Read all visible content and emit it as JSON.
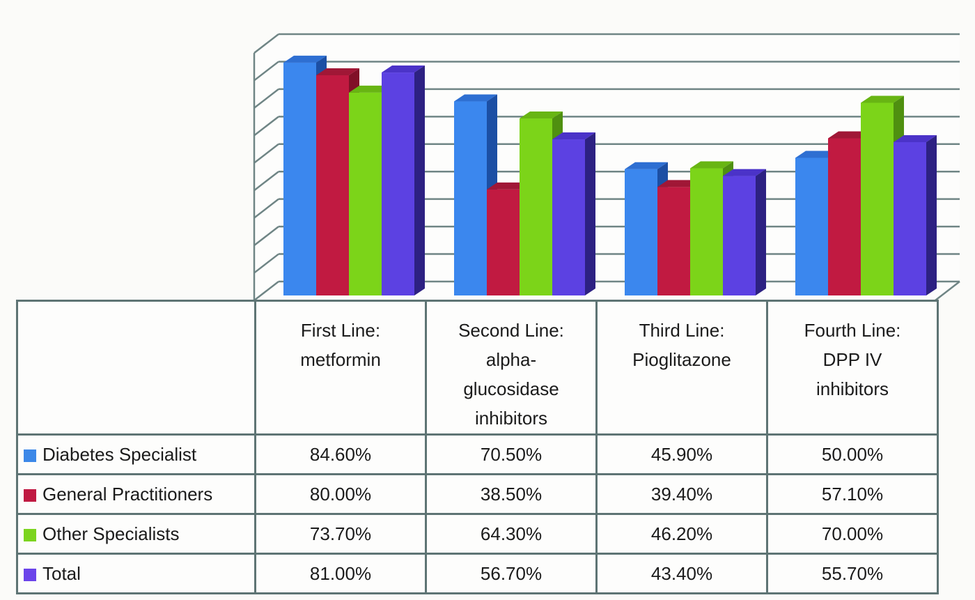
{
  "chart_data": {
    "type": "bar",
    "projection": "3d",
    "title": "",
    "categories": [
      "First Line: metformin",
      "Second Line: alpha-glucosidase inhibitors",
      "Third Line: Pioglitazone",
      "Fourth Line: DPP IV inhibitors"
    ],
    "category_lines": [
      [
        "First Line:",
        "metformin"
      ],
      [
        "Second Line:",
        "alpha-",
        "glucosidase",
        "inhibitors"
      ],
      [
        "Third Line:",
        "Pioglitazone"
      ],
      [
        "Fourth Line:",
        "DPP IV",
        "inhibitors"
      ]
    ],
    "series": [
      {
        "name": "Diabetes Specialist",
        "values": [
          84.6,
          70.5,
          45.9,
          50.0
        ],
        "labels": [
          "84.60%",
          "70.50%",
          "45.90%",
          "50.00%"
        ],
        "colors": {
          "front": "#3b87ee",
          "top": "#2e6fd2",
          "side": "#1c4fa4",
          "legend": "#3c88e8"
        }
      },
      {
        "name": "General Practitioners",
        "values": [
          80.0,
          38.5,
          39.4,
          57.1
        ],
        "labels": [
          "80.00%",
          "38.50%",
          "39.40%",
          "57.10%"
        ],
        "colors": {
          "front": "#c11a41",
          "top": "#a01736",
          "side": "#811028",
          "legend": "#c01a42"
        }
      },
      {
        "name": "Other Specialists",
        "values": [
          73.7,
          64.3,
          46.2,
          70.0
        ],
        "labels": [
          "73.70%",
          "64.30%",
          "46.20%",
          "70.00%"
        ],
        "colors": {
          "front": "#7cd419",
          "top": "#68b513",
          "side": "#4f9010",
          "legend": "#7cd41f"
        }
      },
      {
        "name": "Total",
        "values": [
          81.0,
          56.7,
          43.4,
          55.7
        ],
        "labels": [
          "81.00%",
          "56.70%",
          "43.40%",
          "55.70%"
        ],
        "colors": {
          "front": "#5c41e2",
          "top": "#4b33c8",
          "side": "#2d2182",
          "legend": "#6b44ea"
        }
      }
    ],
    "ylim": [
      0,
      90
    ],
    "gridline_step": 10,
    "grid": "on",
    "legend_position": "table-left"
  },
  "colors": {
    "grid": "#6f8585",
    "table_border": "#5e7474",
    "text": "#1b1b1b",
    "background": "#fbfbf9",
    "chart_fill": "#fdfdfc"
  }
}
